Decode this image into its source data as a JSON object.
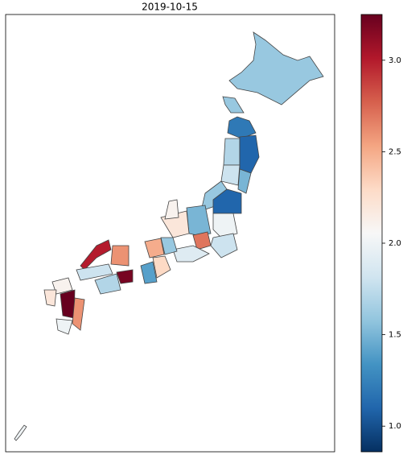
{
  "chart_data": {
    "type": "choropleth",
    "title": "2019-10-15",
    "values": [
      1.6,
      1.2,
      1.7,
      1.1,
      1.8,
      1.5,
      1.6,
      1.1,
      2.0,
      1.5,
      2.7,
      1.8,
      1.9,
      2.2,
      2.1,
      1.6,
      2.3,
      2.5,
      1.4,
      2.6,
      3.0,
      1.8,
      1.7,
      3.2,
      2.1,
      3.3,
      2.6,
      2.0,
      2.2,
      2.0
    ],
    "colorbar_lim": [
      0.86,
      3.25
    ],
    "colorbar_ticks": [
      {
        "value": 1,
        "label": "1.0"
      },
      {
        "value": 1.5,
        "label": "1.5"
      },
      {
        "value": 2,
        "label": "2.0"
      },
      {
        "value": 2.5,
        "label": "2.5"
      },
      {
        "value": 3,
        "label": "3.0"
      }
    ],
    "colormap": [
      "#053061",
      "#2166ac",
      "#4393c3",
      "#92c5de",
      "#d1e5f0",
      "#f7f7f7",
      "#fddbc7",
      "#f4a582",
      "#d6604d",
      "#b2182b",
      "#67001f"
    ]
  }
}
